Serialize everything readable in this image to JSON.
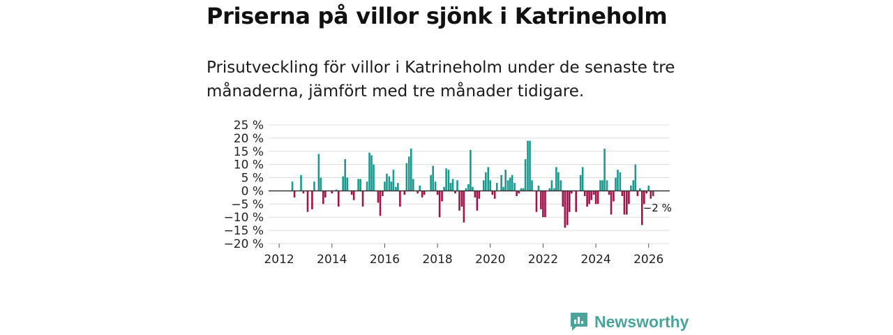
{
  "title": "Priserna på villor sjönk i Katrineholm",
  "subtitle": "Prisutveckling för villor i Katrineholm under de senaste tre månaderna, jämfört med tre månader tidigare.",
  "brand": "Newsworthy",
  "colors": {
    "positive": "#1a9a8e",
    "negative": "#a0144a",
    "grid": "#dddddd",
    "zero": "#333333",
    "brand": "#4aa49a"
  },
  "chart_data": {
    "type": "bar",
    "title": "Priserna på villor sjönk i Katrineholm",
    "xlabel": "",
    "ylabel": "",
    "ylim": [
      -20,
      25
    ],
    "xlim": [
      2011.6,
      2026.8
    ],
    "y_ticks": [
      25,
      20,
      15,
      10,
      5,
      0,
      -5,
      -10,
      -15,
      -20
    ],
    "y_tick_labels": [
      "25 %",
      "20 %",
      "15 %",
      "10 %",
      "5 %",
      "0 %",
      "−5 %",
      "−10 %",
      "−15 %",
      "−20 %"
    ],
    "x_ticks": [
      2012,
      2014,
      2016,
      2018,
      2020,
      2022,
      2024,
      2026
    ],
    "x_tick_labels": [
      "2012",
      "2014",
      "2016",
      "2018",
      "2020",
      "2022",
      "2024",
      "2026"
    ],
    "annotation": {
      "text": "−2 %",
      "x": 2025.92,
      "y": -2
    },
    "series": [
      {
        "name": "Prisutveckling",
        "points": [
          {
            "x": 2012.5,
            "y": 3.5
          },
          {
            "x": 2012.58,
            "y": -2.5
          },
          {
            "x": 2012.83,
            "y": 6
          },
          {
            "x": 2012.92,
            "y": -1
          },
          {
            "x": 2013.08,
            "y": -8
          },
          {
            "x": 2013.25,
            "y": -7
          },
          {
            "x": 2013.33,
            "y": 3.5
          },
          {
            "x": 2013.5,
            "y": 14
          },
          {
            "x": 2013.58,
            "y": 5
          },
          {
            "x": 2013.67,
            "y": -5
          },
          {
            "x": 2013.75,
            "y": -2.5
          },
          {
            "x": 2014.0,
            "y": -1
          },
          {
            "x": 2014.17,
            "y": 0.5
          },
          {
            "x": 2014.25,
            "y": -6
          },
          {
            "x": 2014.42,
            "y": 5.5
          },
          {
            "x": 2014.5,
            "y": 12
          },
          {
            "x": 2014.58,
            "y": 5
          },
          {
            "x": 2014.75,
            "y": -1.5
          },
          {
            "x": 2014.83,
            "y": -3.5
          },
          {
            "x": 2015.0,
            "y": 4.5
          },
          {
            "x": 2015.08,
            "y": 4.5
          },
          {
            "x": 2015.17,
            "y": -6
          },
          {
            "x": 2015.33,
            "y": 3.5
          },
          {
            "x": 2015.42,
            "y": 14.5
          },
          {
            "x": 2015.5,
            "y": 13.5
          },
          {
            "x": 2015.58,
            "y": 10
          },
          {
            "x": 2015.75,
            "y": -4.5
          },
          {
            "x": 2015.83,
            "y": -9.5
          },
          {
            "x": 2015.92,
            "y": -2
          },
          {
            "x": 2016.0,
            "y": 3.5
          },
          {
            "x": 2016.08,
            "y": 6.5
          },
          {
            "x": 2016.17,
            "y": 5.5
          },
          {
            "x": 2016.25,
            "y": 3.5
          },
          {
            "x": 2016.33,
            "y": 8
          },
          {
            "x": 2016.42,
            "y": 1.5
          },
          {
            "x": 2016.5,
            "y": 3
          },
          {
            "x": 2016.58,
            "y": -6
          },
          {
            "x": 2016.75,
            "y": -1.5
          },
          {
            "x": 2016.83,
            "y": 10.5
          },
          {
            "x": 2016.92,
            "y": 13
          },
          {
            "x": 2017.0,
            "y": 16
          },
          {
            "x": 2017.08,
            "y": 4.5
          },
          {
            "x": 2017.25,
            "y": -1
          },
          {
            "x": 2017.33,
            "y": 2
          },
          {
            "x": 2017.42,
            "y": -2.5
          },
          {
            "x": 2017.5,
            "y": -1.5
          },
          {
            "x": 2017.75,
            "y": 6
          },
          {
            "x": 2017.83,
            "y": 9.5
          },
          {
            "x": 2017.92,
            "y": 3.5
          },
          {
            "x": 2018.0,
            "y": -1.5
          },
          {
            "x": 2018.08,
            "y": -10
          },
          {
            "x": 2018.17,
            "y": -4
          },
          {
            "x": 2018.25,
            "y": 1.5
          },
          {
            "x": 2018.33,
            "y": 8.5
          },
          {
            "x": 2018.42,
            "y": 8
          },
          {
            "x": 2018.5,
            "y": 3
          },
          {
            "x": 2018.58,
            "y": 4.5
          },
          {
            "x": 2018.67,
            "y": -1
          },
          {
            "x": 2018.75,
            "y": 4
          },
          {
            "x": 2018.83,
            "y": -7.5
          },
          {
            "x": 2018.92,
            "y": -6
          },
          {
            "x": 2019.0,
            "y": -12
          },
          {
            "x": 2019.08,
            "y": 1
          },
          {
            "x": 2019.17,
            "y": 2.5
          },
          {
            "x": 2019.25,
            "y": 15.5
          },
          {
            "x": 2019.33,
            "y": 1.5
          },
          {
            "x": 2019.42,
            "y": -2.5
          },
          {
            "x": 2019.5,
            "y": -7.5
          },
          {
            "x": 2019.58,
            "y": -3
          },
          {
            "x": 2019.75,
            "y": 4
          },
          {
            "x": 2019.83,
            "y": 7
          },
          {
            "x": 2019.92,
            "y": 9
          },
          {
            "x": 2020.0,
            "y": 4
          },
          {
            "x": 2020.08,
            "y": -1.5
          },
          {
            "x": 2020.17,
            "y": -3
          },
          {
            "x": 2020.25,
            "y": 3
          },
          {
            "x": 2020.42,
            "y": 6
          },
          {
            "x": 2020.5,
            "y": 1.5
          },
          {
            "x": 2020.58,
            "y": 8
          },
          {
            "x": 2020.67,
            "y": 4
          },
          {
            "x": 2020.75,
            "y": 5
          },
          {
            "x": 2020.83,
            "y": 6
          },
          {
            "x": 2020.92,
            "y": 3
          },
          {
            "x": 2021.0,
            "y": -2
          },
          {
            "x": 2021.08,
            "y": -1
          },
          {
            "x": 2021.17,
            "y": 1
          },
          {
            "x": 2021.25,
            "y": 1
          },
          {
            "x": 2021.33,
            "y": 12
          },
          {
            "x": 2021.42,
            "y": 19
          },
          {
            "x": 2021.5,
            "y": 19
          },
          {
            "x": 2021.58,
            "y": 4
          },
          {
            "x": 2021.75,
            "y": -8
          },
          {
            "x": 2021.83,
            "y": 2
          },
          {
            "x": 2021.92,
            "y": -7
          },
          {
            "x": 2022.0,
            "y": -10
          },
          {
            "x": 2022.08,
            "y": -10
          },
          {
            "x": 2022.25,
            "y": 1
          },
          {
            "x": 2022.33,
            "y": 4
          },
          {
            "x": 2022.42,
            "y": 1
          },
          {
            "x": 2022.5,
            "y": 9
          },
          {
            "x": 2022.58,
            "y": 7
          },
          {
            "x": 2022.67,
            "y": 4
          },
          {
            "x": 2022.75,
            "y": -6
          },
          {
            "x": 2022.83,
            "y": -14
          },
          {
            "x": 2022.92,
            "y": -13
          },
          {
            "x": 2023.0,
            "y": -8
          },
          {
            "x": 2023.08,
            "y": -1
          },
          {
            "x": 2023.25,
            "y": -8
          },
          {
            "x": 2023.42,
            "y": 6
          },
          {
            "x": 2023.5,
            "y": 9
          },
          {
            "x": 2023.58,
            "y": -2
          },
          {
            "x": 2023.67,
            "y": -6
          },
          {
            "x": 2023.75,
            "y": -5
          },
          {
            "x": 2023.83,
            "y": -3.5
          },
          {
            "x": 2023.92,
            "y": -1.5
          },
          {
            "x": 2024.0,
            "y": -5
          },
          {
            "x": 2024.08,
            "y": -5
          },
          {
            "x": 2024.17,
            "y": 4
          },
          {
            "x": 2024.25,
            "y": 4
          },
          {
            "x": 2024.33,
            "y": 16
          },
          {
            "x": 2024.42,
            "y": 4
          },
          {
            "x": 2024.5,
            "y": -1.5
          },
          {
            "x": 2024.58,
            "y": -9
          },
          {
            "x": 2024.67,
            "y": -4
          },
          {
            "x": 2024.75,
            "y": 5
          },
          {
            "x": 2024.83,
            "y": 8
          },
          {
            "x": 2024.92,
            "y": 7
          },
          {
            "x": 2025.0,
            "y": -2
          },
          {
            "x": 2025.08,
            "y": -9
          },
          {
            "x": 2025.17,
            "y": -9
          },
          {
            "x": 2025.25,
            "y": -5
          },
          {
            "x": 2025.33,
            "y": 2
          },
          {
            "x": 2025.42,
            "y": 4
          },
          {
            "x": 2025.5,
            "y": 10
          },
          {
            "x": 2025.58,
            "y": -2
          },
          {
            "x": 2025.67,
            "y": 1
          },
          {
            "x": 2025.75,
            "y": -13
          },
          {
            "x": 2025.83,
            "y": -5
          },
          {
            "x": 2025.92,
            "y": -1
          },
          {
            "x": 2026.0,
            "y": 2
          },
          {
            "x": 2026.08,
            "y": -3
          },
          {
            "x": 2026.17,
            "y": -2
          }
        ]
      }
    ]
  }
}
